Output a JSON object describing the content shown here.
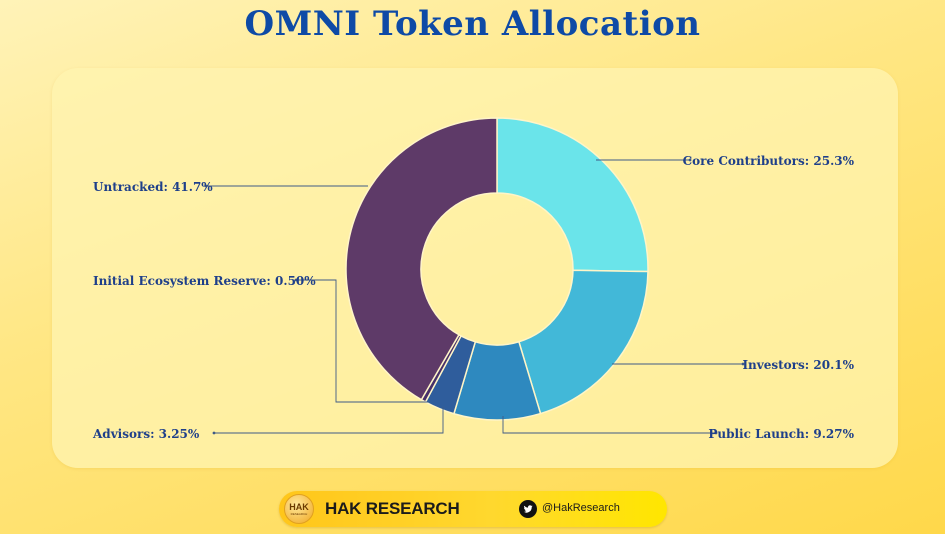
{
  "chart_data": {
    "type": "pie",
    "title": "OMNI Token Allocation",
    "donut": true,
    "start_angle_deg": 0,
    "direction": "clockwise",
    "categories": [
      "Core Contributors",
      "Investors",
      "Public Launch",
      "Advisors",
      "Initial Ecosystem Reserve",
      "Untracked"
    ],
    "values": [
      25.3,
      20.1,
      9.27,
      3.25,
      0.5,
      41.7
    ],
    "labels": [
      "Core Contributors: 25.3%",
      "Investors: 20.1%",
      "Public Launch: 9.27%",
      "Advisors: 3.25%",
      "Initial Ecosystem Reserve: 0.50%",
      "Untracked: 41.7%"
    ],
    "colors": [
      "#6ae4ea",
      "#42b8d8",
      "#2e89bf",
      "#2f5d9c",
      "#47306a",
      "#5e3a68"
    ]
  },
  "colors": {
    "title": "#0e4aa6",
    "label": "#1e3f8a"
  },
  "footer": {
    "logo_text": "HAK",
    "logo_sub": "RESEARCH",
    "brand": "HAK RESEARCH",
    "twitter_icon": "twitter-bird-icon",
    "handle": "@HakResearch"
  }
}
